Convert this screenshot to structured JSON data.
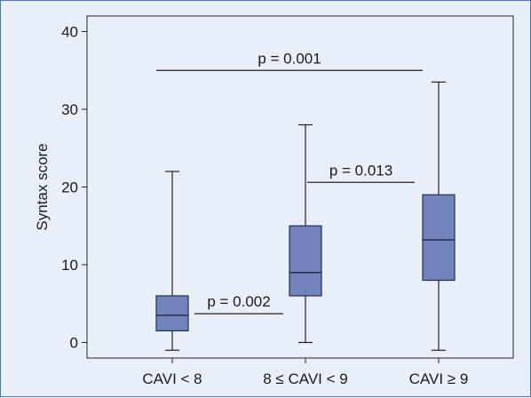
{
  "chart_data": {
    "type": "box",
    "ylabel": "Syntax score",
    "ylim": [
      -2,
      42
    ],
    "yticks": [
      0,
      10,
      20,
      30,
      40
    ],
    "categories": [
      "CAVI < 8",
      "8 ≤ CAVI < 9",
      "CAVI ≥ 9"
    ],
    "boxes": [
      {
        "category": "CAVI < 8",
        "min": -1,
        "q1": 1.5,
        "median": 3.5,
        "q3": 6,
        "max": 22
      },
      {
        "category": "8 ≤ CAVI < 9",
        "min": 0,
        "q1": 6,
        "median": 9,
        "q3": 15,
        "max": 28
      },
      {
        "category": "CAVI ≥ 9",
        "min": -1,
        "q1": 8,
        "median": 13.2,
        "q3": 19,
        "max": 33.5
      }
    ],
    "comparisons": [
      {
        "label": "p = 0.001",
        "from": "CAVI < 8",
        "to": "CAVI ≥ 9",
        "y": 35
      },
      {
        "label": "p = 0.002",
        "from": "CAVI < 8",
        "to": "8 ≤ CAVI < 9",
        "y": 3.7
      },
      {
        "label": "p = 0.013",
        "from": "8 ≤ CAVI < 9",
        "to": "CAVI ≥ 9",
        "y": 20.6
      }
    ],
    "colors": {
      "box_fill": "#7184bc",
      "box_stroke": "#26304a",
      "line": "#222222"
    }
  }
}
